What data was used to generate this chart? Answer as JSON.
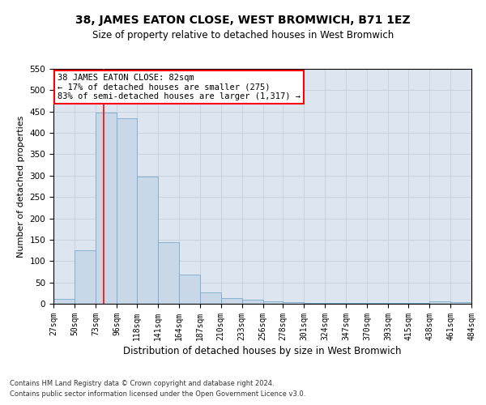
{
  "title": "38, JAMES EATON CLOSE, WEST BROMWICH, B71 1EZ",
  "subtitle": "Size of property relative to detached houses in West Bromwich",
  "xlabel": "Distribution of detached houses by size in West Bromwich",
  "ylabel": "Number of detached properties",
  "footnote1": "Contains HM Land Registry data © Crown copyright and database right 2024.",
  "footnote2": "Contains public sector information licensed under the Open Government Licence v3.0.",
  "annotation_title": "38 JAMES EATON CLOSE: 82sqm",
  "annotation_line1": "← 17% of detached houses are smaller (275)",
  "annotation_line2": "83% of semi-detached houses are larger (1,317) →",
  "bar_color": "#c8d8e8",
  "bar_edge_color": "#7aaac8",
  "grid_color": "#c0ccd8",
  "red_line_x": 82,
  "bin_edges": [
    27,
    50,
    73,
    96,
    118,
    141,
    164,
    187,
    210,
    233,
    256,
    278,
    301,
    324,
    347,
    370,
    393,
    415,
    438,
    461,
    484
  ],
  "bar_heights": [
    12,
    125,
    448,
    435,
    297,
    145,
    68,
    26,
    13,
    9,
    6,
    3,
    2,
    2,
    2,
    2,
    2,
    1,
    5,
    4
  ],
  "ylim": [
    0,
    550
  ],
  "yticks": [
    0,
    50,
    100,
    150,
    200,
    250,
    300,
    350,
    400,
    450,
    500,
    550
  ],
  "background_color": "#dde6f0",
  "annotation_box_color": "white",
  "annotation_box_edge": "red",
  "title_fontsize": 10,
  "subtitle_fontsize": 8.5,
  "ylabel_fontsize": 8,
  "xlabel_fontsize": 8.5,
  "tick_fontsize": 7,
  "annot_fontsize": 7.5,
  "footnote_fontsize": 6
}
